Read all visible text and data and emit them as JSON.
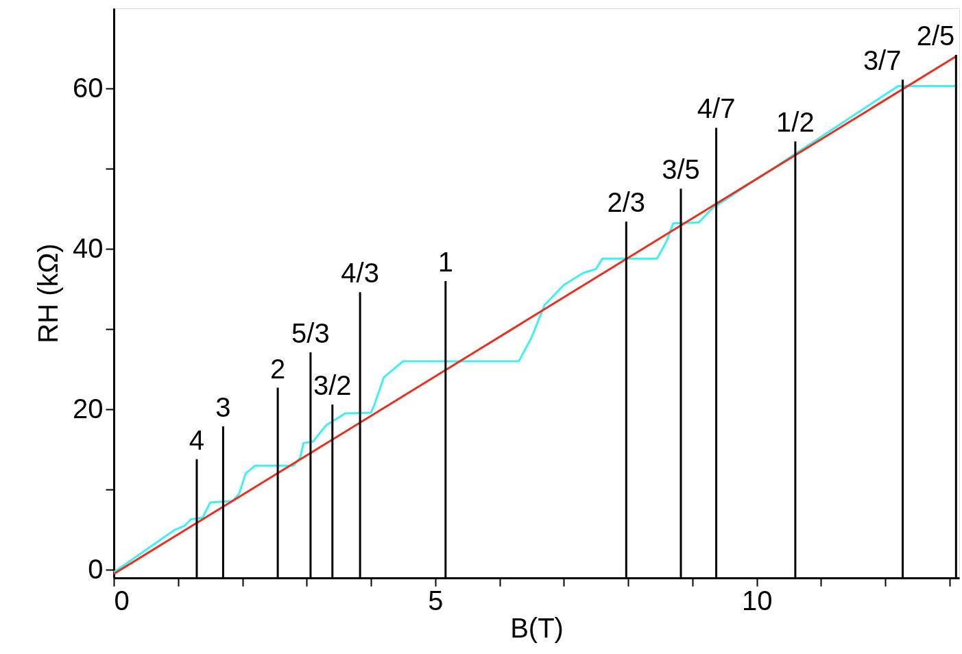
{
  "chart_data": {
    "type": "line",
    "xlabel": "B(T)",
    "ylabel": "RH  (kΩ)",
    "xlim": [
      0,
      13.15
    ],
    "ylim": [
      -1,
      70
    ],
    "xticks": [
      0,
      {
        "value": 1,
        "label": null
      },
      {
        "value": 2,
        "label": null
      },
      {
        "value": 3,
        "label": null
      },
      {
        "value": 4,
        "label": null
      },
      5,
      {
        "value": 6,
        "label": null
      },
      {
        "value": 7,
        "label": null
      },
      {
        "value": 8,
        "label": null
      },
      {
        "value": 9,
        "label": null
      },
      10,
      {
        "value": 11,
        "label": null
      },
      {
        "value": 12,
        "label": null
      },
      {
        "value": 13,
        "label": null
      }
    ],
    "yticks": [
      0,
      {
        "value": 10,
        "label": null
      },
      20,
      {
        "value": 30,
        "label": null
      },
      40,
      {
        "value": 50,
        "label": null
      },
      60
    ],
    "grid": false,
    "marker": "none",
    "line_style": "solid",
    "series": [
      {
        "color": "#40f0f0",
        "x": [
          0,
          0.95,
          1.1,
          1.2,
          1.38,
          1.5,
          1.85,
          1.95,
          2.05,
          2.2,
          2.8,
          2.9,
          2.95,
          3.1,
          3.3,
          3.6,
          4.0,
          4.05,
          4.2,
          4.5,
          6.3,
          6.5,
          6.7,
          7.0,
          7.3,
          7.5,
          7.6,
          8.45,
          8.6,
          8.7,
          9.1,
          9.3,
          12.2,
          13.1
        ],
        "values": [
          -0.3,
          5.0,
          5.5,
          6.3,
          6.5,
          8.4,
          8.6,
          9.5,
          12.0,
          13.0,
          13.0,
          14.0,
          15.8,
          16.0,
          18.0,
          19.5,
          19.6,
          20.5,
          24.0,
          26.0,
          26.0,
          29.0,
          33.0,
          35.5,
          37.0,
          37.5,
          38.8,
          38.8,
          41.0,
          43.2,
          43.3,
          45.0,
          60.3,
          60.3
        ]
      },
      {
        "color": "#e83020",
        "x": [
          0,
          13.1
        ],
        "values": [
          -0.5,
          64.0
        ]
      },
      {
        "type": "bar",
        "color": "#000000",
        "x": [
          1.29,
          1.7,
          2.55,
          3.06,
          3.4,
          3.83,
          5.16,
          7.97,
          8.82,
          9.37,
          10.6,
          12.27,
          13.1
        ],
        "base": [
          -1,
          -1,
          -1,
          -1,
          -1,
          -1,
          -1,
          -1,
          -1,
          -1,
          -1,
          -1,
          -1
        ],
        "values": [
          14.8,
          18.9,
          23.7,
          28.1,
          21.6,
          35.6,
          37.0,
          44.4,
          48.5,
          56.1,
          54.4,
          62.1,
          65.2
        ]
      }
    ],
    "annotations": [
      {
        "text": "4",
        "x": 1.29,
        "y": 13.8
      },
      {
        "text": "3",
        "x": 1.7,
        "y": 17.9
      },
      {
        "text": "2",
        "x": 2.55,
        "y": 22.7
      },
      {
        "text": "5/3",
        "x": 3.06,
        "y": 27.1
      },
      {
        "text": "3/2",
        "x": 3.4,
        "y": 20.6
      },
      {
        "text": "4/3",
        "x": 3.83,
        "y": 34.6
      },
      {
        "text": "1",
        "x": 5.16,
        "y": 36.0
      },
      {
        "text": "2/3",
        "x": 7.97,
        "y": 43.4
      },
      {
        "text": "3/5",
        "x": 8.82,
        "y": 47.5
      },
      {
        "text": "4/7",
        "x": 9.37,
        "y": 55.1
      },
      {
        "text": "1/2",
        "x": 10.6,
        "y": 53.4
      },
      {
        "text": "3/7",
        "x": 12.27,
        "y": 61.1
      },
      {
        "text": "2/5",
        "x": 13.1,
        "y": 64.2
      }
    ]
  }
}
